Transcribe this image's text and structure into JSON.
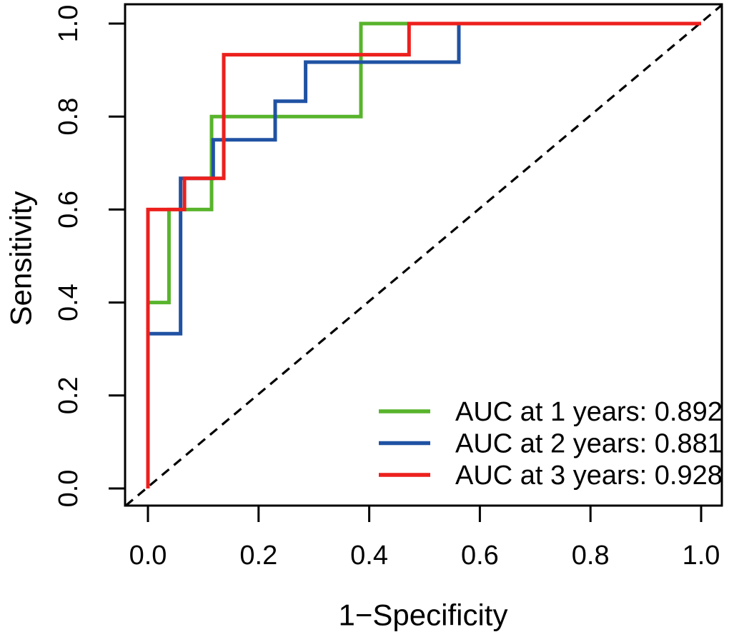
{
  "chart_data": {
    "type": "line",
    "subtype": "roc-step-curves",
    "title": "",
    "xlabel": "1−Specificity",
    "ylabel": "Sensitivity",
    "xlim": [
      0,
      1
    ],
    "ylim": [
      0,
      1
    ],
    "grid": false,
    "x_ticks": [
      "0.0",
      "0.2",
      "0.4",
      "0.6",
      "0.8",
      "1.0"
    ],
    "x_tick_values": [
      0,
      0.2,
      0.4,
      0.6,
      0.8,
      1.0
    ],
    "y_ticks": [
      "0.0",
      "0.2",
      "0.4",
      "0.6",
      "0.8",
      "1.0"
    ],
    "y_tick_values": [
      0,
      0.2,
      0.4,
      0.6,
      0.8,
      1.0
    ],
    "reference_line": {
      "style": "dashed",
      "color": "#000000",
      "from": [
        0,
        0
      ],
      "to": [
        1,
        1
      ]
    },
    "legend_position": "bottom-right",
    "series": [
      {
        "name": "AUC at 1 years: 0.892",
        "auc": 0.892,
        "color": "#58B42C",
        "points": [
          [
            0,
            0
          ],
          [
            0,
            0.4
          ],
          [
            0.038,
            0.4
          ],
          [
            0.038,
            0.6
          ],
          [
            0.115,
            0.6
          ],
          [
            0.115,
            0.8
          ],
          [
            0.385,
            0.8
          ],
          [
            0.385,
            1
          ],
          [
            1,
            1
          ]
        ]
      },
      {
        "name": "AUC at 2 years: 0.881",
        "auc": 0.881,
        "color": "#2052A3",
        "points": [
          [
            0,
            0
          ],
          [
            0,
            0.333
          ],
          [
            0.059,
            0.333
          ],
          [
            0.059,
            0.667
          ],
          [
            0.118,
            0.667
          ],
          [
            0.118,
            0.75
          ],
          [
            0.23,
            0.75
          ],
          [
            0.23,
            0.833
          ],
          [
            0.285,
            0.833
          ],
          [
            0.285,
            0.917
          ],
          [
            0.562,
            0.917
          ],
          [
            0.562,
            1
          ],
          [
            1,
            1
          ]
        ]
      },
      {
        "name": "AUC at 3 years: 0.928",
        "auc": 0.928,
        "color": "#EC201D",
        "points": [
          [
            0,
            0
          ],
          [
            0,
            0.6
          ],
          [
            0.066,
            0.6
          ],
          [
            0.066,
            0.667
          ],
          [
            0.137,
            0.667
          ],
          [
            0.137,
            0.933
          ],
          [
            0.472,
            0.933
          ],
          [
            0.472,
            1
          ],
          [
            1,
            1
          ]
        ]
      }
    ]
  }
}
